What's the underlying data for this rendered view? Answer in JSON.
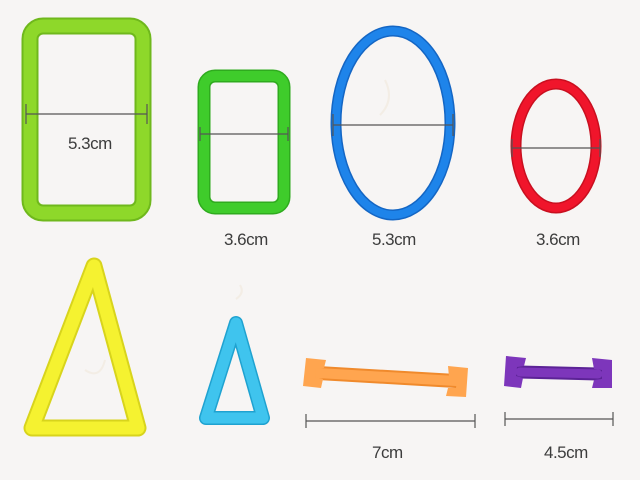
{
  "photo": {
    "background": "#f7f5f4",
    "pieces": [
      {
        "name": "lime-rectangle-ring",
        "color": "#8ed82a",
        "measurement": "5.3cm"
      },
      {
        "name": "green-rectangle-ring",
        "color": "#3fcc2b",
        "measurement": "3.6cm"
      },
      {
        "name": "blue-oval-ring",
        "color": "#1e7fe6",
        "measurement": "5.3cm"
      },
      {
        "name": "red-circle-ring",
        "color": "#f0152b",
        "measurement": "3.6cm"
      },
      {
        "name": "yellow-triangle-ring",
        "color": "#f2f02a"
      },
      {
        "name": "cyan-triangle-ring",
        "color": "#38bde8"
      },
      {
        "name": "orange-connector-stick",
        "color": "#ffa14d",
        "measurement": "7cm"
      },
      {
        "name": "purple-connector-stick",
        "color": "#7b33b8",
        "measurement": "4.5cm"
      }
    ]
  }
}
